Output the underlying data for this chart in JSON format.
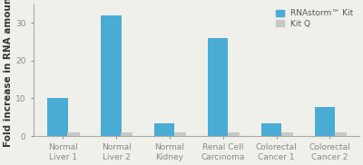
{
  "categories": [
    "Normal\nLiver 1",
    "Normal\nLiver 2",
    "Normal\nKidney",
    "Renal Cell\nCarcinoma",
    "Colorectal\nCancer 1",
    "Colorectal\nCancer 2"
  ],
  "rnastorm_values": [
    10.0,
    32.0,
    3.5,
    26.0,
    3.3,
    7.7
  ],
  "kitq_values": [
    1.0,
    1.0,
    1.0,
    1.0,
    1.0,
    1.0
  ],
  "rnastorm_color": "#4aacd4",
  "kitq_color": "#c8c8c8",
  "ylabel": "Fold increase in RNA amount",
  "ylim": [
    0,
    35
  ],
  "yticks": [
    0,
    10,
    20,
    30
  ],
  "bar_width": 0.38,
  "background_color": "#f0f0ea",
  "legend_labels": [
    "RNAstorm™ Kit",
    "Kit Q"
  ],
  "legend_fontsize": 6.5,
  "ylabel_fontsize": 7.5,
  "tick_fontsize": 6.5
}
